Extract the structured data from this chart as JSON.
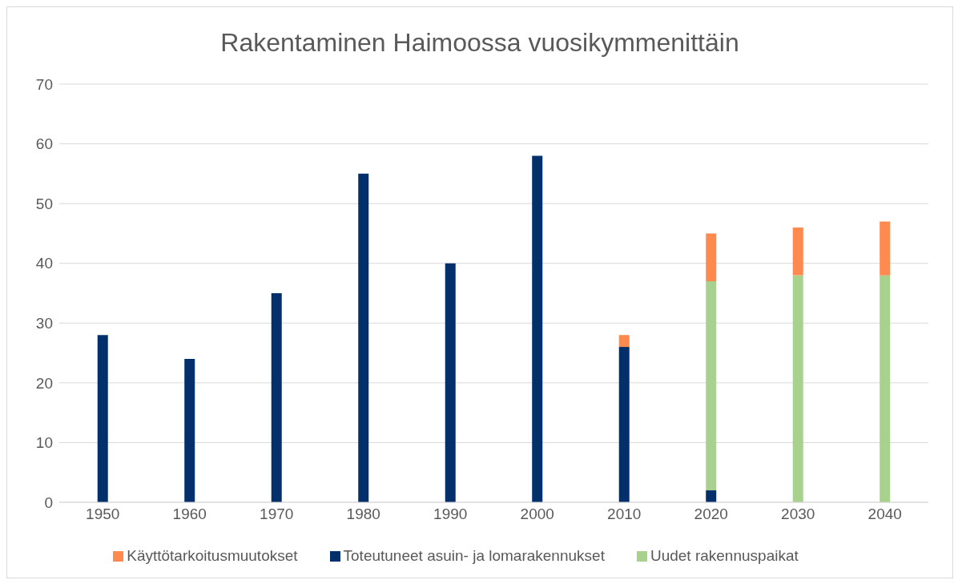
{
  "chart_data": {
    "type": "bar",
    "title": "Rakentaminen Haimoossa vuosikymmenittäin",
    "categories": [
      "1950",
      "1960",
      "1970",
      "1980",
      "1990",
      "2000",
      "2010",
      "2020",
      "2030",
      "2040"
    ],
    "stacked": true,
    "series": [
      {
        "name": "Toteutuneet asuin- ja lomarakennukset",
        "color": "#03306b",
        "values": [
          28,
          24,
          35,
          55,
          40,
          58,
          26,
          2,
          null,
          null
        ]
      },
      {
        "name": "Uudet rakennuspaikat",
        "color": "#a9d18e",
        "values": [
          null,
          null,
          null,
          null,
          null,
          null,
          null,
          35,
          38,
          38
        ]
      },
      {
        "name": "Käyttötarkoitusmuutokset",
        "color": "#ff8a50",
        "values": [
          null,
          null,
          null,
          null,
          null,
          null,
          2,
          8,
          8,
          9
        ]
      }
    ],
    "ylim": [
      0,
      70
    ],
    "yticks": [
      0,
      10,
      20,
      30,
      40,
      50,
      60,
      70
    ],
    "grid": "y",
    "legend": "bottom"
  }
}
